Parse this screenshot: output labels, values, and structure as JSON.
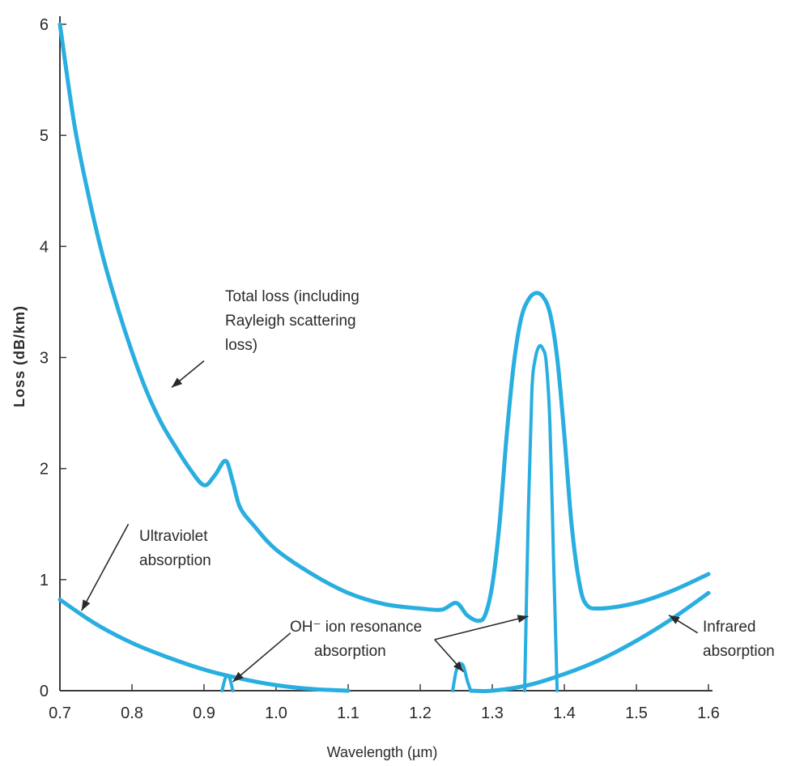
{
  "chart_data": {
    "type": "line",
    "title": "",
    "xlabel": "Wavelength (µm)",
    "ylabel": "Loss (dB/km)",
    "xlim": [
      0.7,
      1.6
    ],
    "ylim": [
      0,
      6
    ],
    "x_ticks": [
      "0.7",
      "0.8",
      "0.9",
      "1.0",
      "1.1",
      "1.2",
      "1.3",
      "1.4",
      "1.5",
      "1.6"
    ],
    "y_ticks": [
      "0",
      "1",
      "2",
      "3",
      "4",
      "5",
      "6"
    ],
    "grid": false,
    "line_color": "#29aee0",
    "series": [
      {
        "name": "Total loss",
        "x": [
          0.7,
          0.72,
          0.74,
          0.76,
          0.78,
          0.8,
          0.82,
          0.84,
          0.86,
          0.88,
          0.9,
          0.915,
          0.93,
          0.94,
          0.95,
          0.97,
          1.0,
          1.05,
          1.1,
          1.15,
          1.2,
          1.23,
          1.25,
          1.265,
          1.28,
          1.29,
          1.3,
          1.31,
          1.32,
          1.33,
          1.34,
          1.35,
          1.36,
          1.37,
          1.38,
          1.39,
          1.4,
          1.41,
          1.42,
          1.43,
          1.45,
          1.5,
          1.55,
          1.6
        ],
        "y": [
          6.0,
          5.1,
          4.45,
          3.9,
          3.45,
          3.05,
          2.7,
          2.42,
          2.2,
          2.0,
          1.85,
          1.94,
          2.07,
          1.88,
          1.65,
          1.48,
          1.27,
          1.05,
          0.88,
          0.78,
          0.74,
          0.73,
          0.79,
          0.68,
          0.63,
          0.68,
          0.95,
          1.5,
          2.3,
          2.95,
          3.35,
          3.52,
          3.58,
          3.55,
          3.4,
          3.0,
          2.3,
          1.5,
          1.0,
          0.78,
          0.74,
          0.79,
          0.9,
          1.05
        ]
      },
      {
        "name": "Ultraviolet absorption",
        "x": [
          0.7,
          0.75,
          0.8,
          0.85,
          0.9,
          0.95,
          1.0,
          1.05,
          1.1
        ],
        "y": [
          0.82,
          0.6,
          0.43,
          0.3,
          0.19,
          0.11,
          0.05,
          0.015,
          0.0
        ]
      },
      {
        "name": "Infrared absorption",
        "x": [
          1.27,
          1.3,
          1.35,
          1.4,
          1.45,
          1.5,
          1.55,
          1.6
        ],
        "y": [
          0.0,
          0.0,
          0.05,
          0.15,
          0.28,
          0.45,
          0.65,
          0.88
        ]
      },
      {
        "name": "OH⁻ ion resonance absorption",
        "segments": [
          {
            "x": [
              0.925,
              0.93,
              0.935,
              0.94
            ],
            "y": [
              0.0,
              0.12,
              0.12,
              0.0
            ]
          },
          {
            "x": [
              1.245,
              1.25,
              1.255,
              1.26,
              1.265,
              1.27
            ],
            "y": [
              0.0,
              0.18,
              0.24,
              0.22,
              0.1,
              0.0
            ]
          },
          {
            "x": [
              1.345,
              1.35,
              1.355,
              1.36,
              1.365,
              1.37,
              1.375,
              1.38,
              1.385,
              1.39
            ],
            "y": [
              0.0,
              1.6,
              2.7,
              3.0,
              3.1,
              3.08,
              2.95,
              2.4,
              1.2,
              0.0
            ]
          }
        ]
      }
    ],
    "annotations": [
      {
        "lines": [
          "Total loss (including",
          "Rayleigh scattering",
          "loss)"
        ]
      },
      {
        "lines": [
          "Ultraviolet",
          "absorption"
        ]
      },
      {
        "lines": [
          "OH⁻ ion resonance",
          "absorption"
        ]
      },
      {
        "lines": [
          "Infrared",
          "absorption"
        ]
      }
    ]
  }
}
